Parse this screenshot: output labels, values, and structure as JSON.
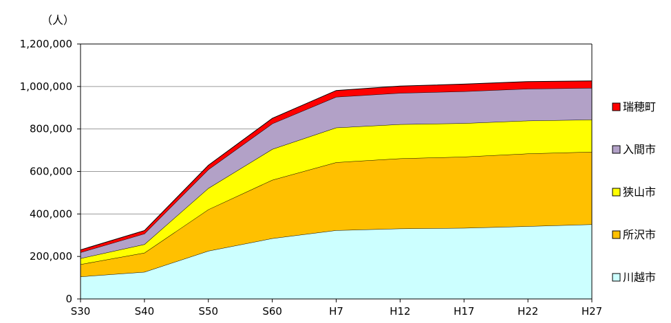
{
  "chart_data": {
    "type": "area",
    "stacked": true,
    "unit_label": "（人）",
    "categories": [
      "S30",
      "S40",
      "S50",
      "S60",
      "H7",
      "H12",
      "H17",
      "H22",
      "H27"
    ],
    "y_tick_labels": [
      "0",
      "200,000",
      "400,000",
      "600,000",
      "800,000",
      "1,000,000",
      "1,200,000"
    ],
    "ylim": [
      0,
      1200000
    ],
    "grid": "horizontal",
    "legend_position": "right",
    "series": [
      {
        "name": "川越市",
        "color": "#ccffff",
        "values": [
          105000,
          127000,
          226000,
          285000,
          323000,
          331000,
          334000,
          342000,
          351000
        ]
      },
      {
        "name": "所沢市",
        "color": "#ffc000",
        "values": [
          58000,
          90000,
          195000,
          275000,
          320000,
          330000,
          335000,
          342000,
          341000
        ]
      },
      {
        "name": "狭山市",
        "color": "#ffff00",
        "values": [
          28000,
          40000,
          100000,
          145000,
          163000,
          161000,
          158000,
          155000,
          152000
        ]
      },
      {
        "name": "入間市",
        "color": "#b2a1c7",
        "values": [
          28000,
          50000,
          88000,
          120000,
          145000,
          147000,
          150000,
          150000,
          149000
        ]
      },
      {
        "name": "瑞穂町",
        "color": "#ff0000",
        "values": [
          12000,
          15000,
          20000,
          25000,
          30000,
          33000,
          34000,
          34000,
          33000
        ]
      }
    ]
  }
}
